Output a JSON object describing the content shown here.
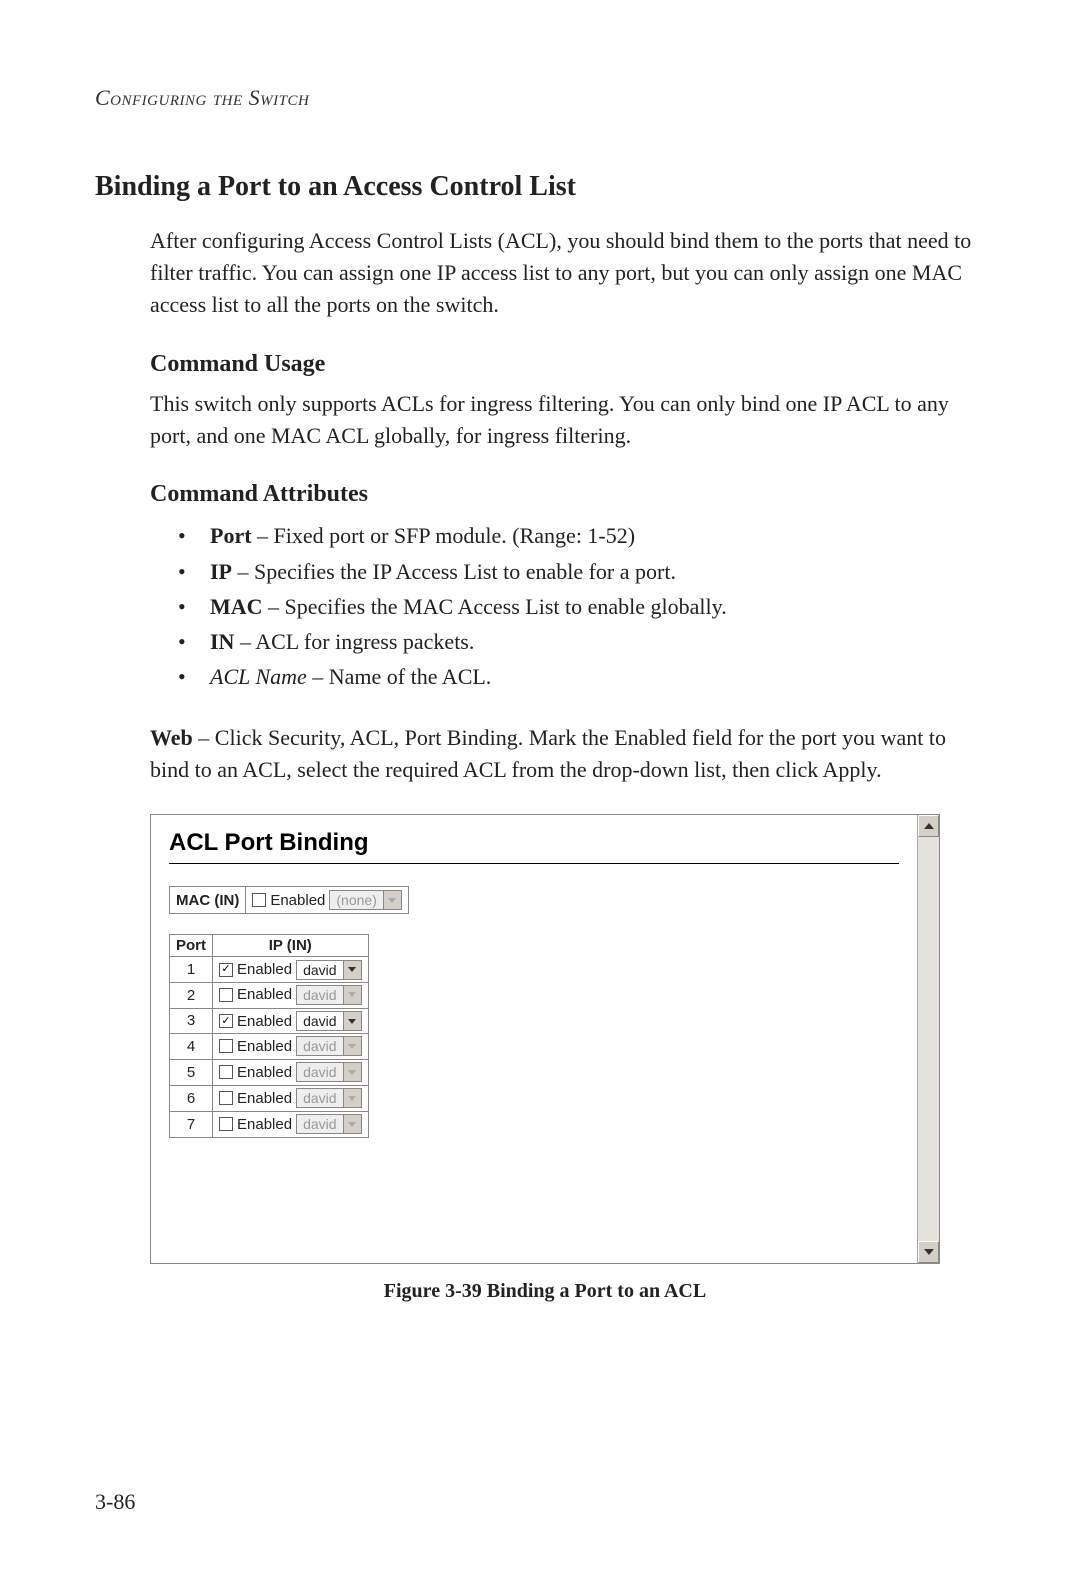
{
  "running_head": "Configuring the Switch",
  "section_title": "Binding a Port to an Access Control List",
  "intro": "After configuring Access Control Lists (ACL), you should bind them to the ports that need to filter traffic. You can assign one IP access list to any port, but you can only assign one MAC access list to all the ports on the switch.",
  "usage_title": "Command Usage",
  "usage_text": "This switch only supports ACLs for ingress filtering. You can only bind one IP ACL to any port, and one MAC ACL globally, for ingress filtering.",
  "attrs_title": "Command Attributes",
  "attrs": [
    {
      "term": "Port",
      "italic": false,
      "desc": " – Fixed port or SFP module. (Range: 1-52)"
    },
    {
      "term": "IP",
      "italic": false,
      "desc": " – Specifies the IP Access List to enable for a port."
    },
    {
      "term": "MAC",
      "italic": false,
      "desc": " – Specifies the MAC Access List to enable globally."
    },
    {
      "term": "IN",
      "italic": false,
      "desc": " – ACL for ingress packets."
    },
    {
      "term": "ACL Name",
      "italic": true,
      "desc": " – Name of the ACL."
    }
  ],
  "web_lead": "Web",
  "web_text": " – Click Security, ACL, Port Binding. Mark the Enabled field for the port you want to bind to an ACL, select the required ACL from the drop-down list, then click Apply.",
  "shot": {
    "title": "ACL Port Binding",
    "mac_label": "MAC (IN)",
    "enabled_label": "Enabled",
    "mac_checked": false,
    "mac_select_value": "(none)",
    "mac_select_disabled": true,
    "table": {
      "headers": [
        "Port",
        "IP (IN)"
      ],
      "rows": [
        {
          "port": "1",
          "checked": true,
          "acl": "david",
          "disabled": false
        },
        {
          "port": "2",
          "checked": false,
          "acl": "david",
          "disabled": true
        },
        {
          "port": "3",
          "checked": true,
          "acl": "david",
          "disabled": false
        },
        {
          "port": "4",
          "checked": false,
          "acl": "david",
          "disabled": true
        },
        {
          "port": "5",
          "checked": false,
          "acl": "david",
          "disabled": true
        },
        {
          "port": "6",
          "checked": false,
          "acl": "david",
          "disabled": true
        },
        {
          "port": "7",
          "checked": false,
          "acl": "david",
          "disabled": true
        }
      ]
    }
  },
  "caption": "Figure 3-39  Binding a Port to an ACL",
  "page_number": "3-86"
}
